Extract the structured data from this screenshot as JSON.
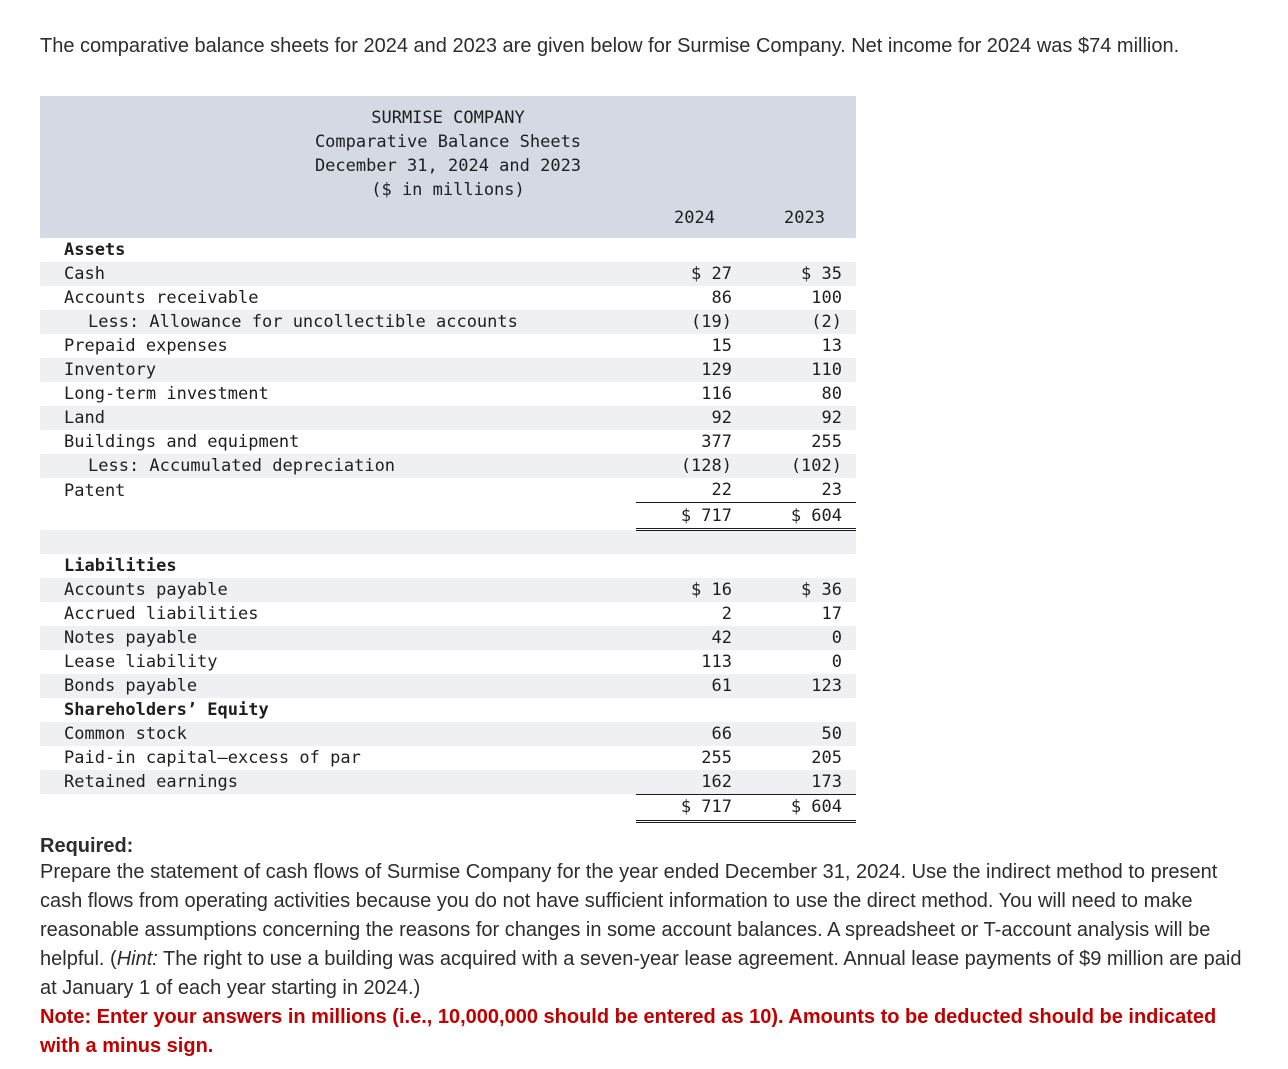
{
  "intro": "The comparative balance sheets for 2024 and 2023 are given below for Surmise Company. Net income for 2024 was $74 million.",
  "table": {
    "title_lines": [
      "SURMISE COMPANY",
      "Comparative Balance Sheets",
      "December 31, 2024 and 2023",
      "($ in millions)"
    ],
    "col_headers": [
      "2024",
      "2023"
    ],
    "rows": [
      {
        "label": "Assets",
        "v2024": "",
        "v2023": "",
        "style": "section",
        "shaded": false
      },
      {
        "label": "Cash",
        "v2024": "$ 27",
        "v2023": "$ 35",
        "style": "item",
        "shaded": true
      },
      {
        "label": "Accounts receivable",
        "v2024": "86",
        "v2023": "100",
        "style": "item",
        "shaded": false
      },
      {
        "label": "Less: Allowance for uncollectible accounts",
        "v2024": "(19)",
        "v2023": "(2)",
        "style": "indent",
        "shaded": true
      },
      {
        "label": "Prepaid expenses",
        "v2024": "15",
        "v2023": "13",
        "style": "item",
        "shaded": false
      },
      {
        "label": "Inventory",
        "v2024": "129",
        "v2023": "110",
        "style": "item",
        "shaded": true
      },
      {
        "label": "Long-term investment",
        "v2024": "116",
        "v2023": "80",
        "style": "item",
        "shaded": false
      },
      {
        "label": "Land",
        "v2024": "92",
        "v2023": "92",
        "style": "item",
        "shaded": true
      },
      {
        "label": "Buildings and equipment",
        "v2024": "377",
        "v2023": "255",
        "style": "item",
        "shaded": false
      },
      {
        "label": "Less: Accumulated depreciation",
        "v2024": "(128)",
        "v2023": "(102)",
        "style": "indent",
        "shaded": true
      },
      {
        "label": "Patent",
        "v2024": "22",
        "v2023": "23",
        "style": "item",
        "shaded": false
      },
      {
        "label": "",
        "v2024": "$ 717",
        "v2023": "$ 604",
        "style": "total",
        "shaded": false
      },
      {
        "label": "",
        "v2024": "",
        "v2023": "",
        "style": "spacer",
        "shaded": true
      },
      {
        "label": "Liabilities",
        "v2024": "",
        "v2023": "",
        "style": "section",
        "shaded": false
      },
      {
        "label": "Accounts payable",
        "v2024": "$ 16",
        "v2023": "$ 36",
        "style": "item",
        "shaded": true
      },
      {
        "label": "Accrued liabilities",
        "v2024": "2",
        "v2023": "17",
        "style": "item",
        "shaded": false
      },
      {
        "label": "Notes payable",
        "v2024": "42",
        "v2023": "0",
        "style": "item",
        "shaded": true
      },
      {
        "label": "Lease liability",
        "v2024": "113",
        "v2023": "0",
        "style": "item",
        "shaded": false
      },
      {
        "label": "Bonds payable",
        "v2024": "61",
        "v2023": "123",
        "style": "item",
        "shaded": true
      },
      {
        "label": "Shareholders’ Equity",
        "v2024": "",
        "v2023": "",
        "style": "section",
        "shaded": false
      },
      {
        "label": "Common stock",
        "v2024": "66",
        "v2023": "50",
        "style": "item",
        "shaded": true
      },
      {
        "label": "Paid-in capital—excess of par",
        "v2024": "255",
        "v2023": "205",
        "style": "item",
        "shaded": false
      },
      {
        "label": "Retained earnings",
        "v2024": "162",
        "v2023": "173",
        "style": "item",
        "shaded": true
      },
      {
        "label": "",
        "v2024": "$ 717",
        "v2023": "$ 604",
        "style": "total",
        "shaded": false
      }
    ]
  },
  "required": {
    "label": "Required:",
    "text_before_hint": "Prepare the statement of cash flows of Surmise Company for the year ended December 31, 2024. Use the indirect method to present cash flows from operating activities because you do not have sufficient information to use the direct method. You will need to make reasonable assumptions concerning the reasons for changes in some account balances. A spreadsheet or T-account analysis will be helpful. (",
    "hint_label": "Hint:",
    "text_after_hint": " The right to use a building was acquired with a seven-year lease agreement. Annual lease payments of $9 million are paid at January 1 of each year starting in 2024.)",
    "note": "Note: Enter your answers in millions (i.e., 10,000,000 should be entered as 10). Amounts to be deducted should be indicated with a minus sign."
  }
}
